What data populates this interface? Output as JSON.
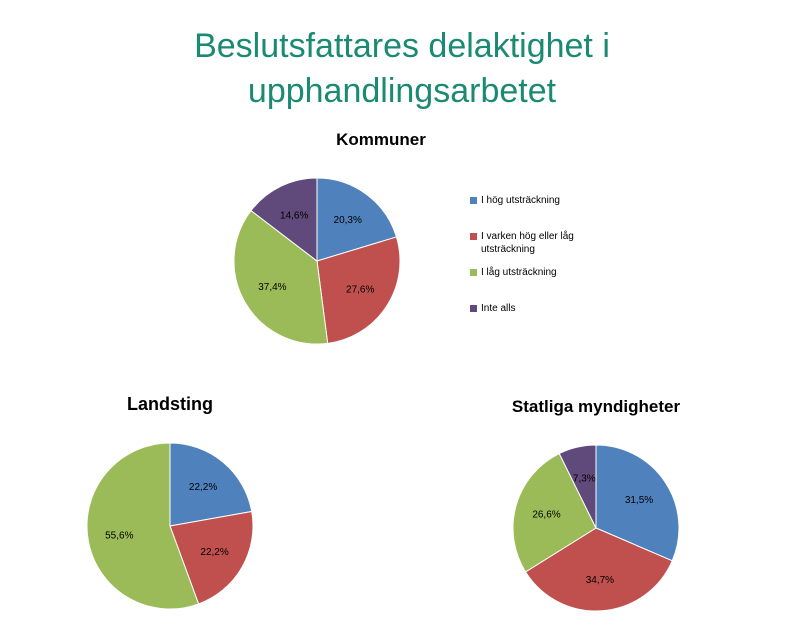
{
  "title_line1": "Beslutsfattares delaktighet i",
  "title_line2": "upphandlingsarbetet",
  "colors": {
    "hog": "#4f81bd",
    "varken": "#c0504d",
    "lag": "#9bbb59",
    "inte": "#604a7b",
    "title": "#1a8a73"
  },
  "legend": [
    {
      "label": "I hög utsträckning",
      "color": "#4f81bd"
    },
    {
      "label": "I varken hög eller låg utsträckning",
      "color": "#c0504d"
    },
    {
      "label": "I låg utsträckning",
      "color": "#9bbb59"
    },
    {
      "label": "Inte alls",
      "color": "#604a7b"
    }
  ],
  "chart_data": [
    {
      "type": "pie",
      "title": "Kommuner",
      "categories": [
        "I hög utsträckning",
        "I varken hög eller låg utsträckning",
        "I låg utsträckning",
        "Inte alls"
      ],
      "values": [
        20.3,
        27.6,
        37.4,
        14.6
      ],
      "labels": [
        "20,3%",
        "27,6%",
        "37,4%",
        "14,6%"
      ],
      "colors": [
        "#4f81bd",
        "#c0504d",
        "#9bbb59",
        "#604a7b"
      ],
      "legend": "right"
    },
    {
      "type": "pie",
      "title": "Landsting",
      "categories": [
        "I hög utsträckning",
        "I varken hög eller låg utsträckning",
        "I låg utsträckning"
      ],
      "values": [
        22.2,
        22.2,
        55.6
      ],
      "labels": [
        "22,2%",
        "22,2%",
        "55,6%"
      ],
      "colors": [
        "#4f81bd",
        "#c0504d",
        "#9bbb59"
      ]
    },
    {
      "type": "pie",
      "title": "Statliga myndigheter",
      "categories": [
        "I hög utsträckning",
        "I varken hög eller låg utsträckning",
        "I låg utsträckning",
        "Inte alls"
      ],
      "values": [
        31.5,
        34.7,
        26.6,
        7.3
      ],
      "labels": [
        "31,5%",
        "34,7%",
        "26,6%",
        "7,3%"
      ],
      "colors": [
        "#4f81bd",
        "#c0504d",
        "#9bbb59",
        "#604a7b"
      ]
    }
  ]
}
